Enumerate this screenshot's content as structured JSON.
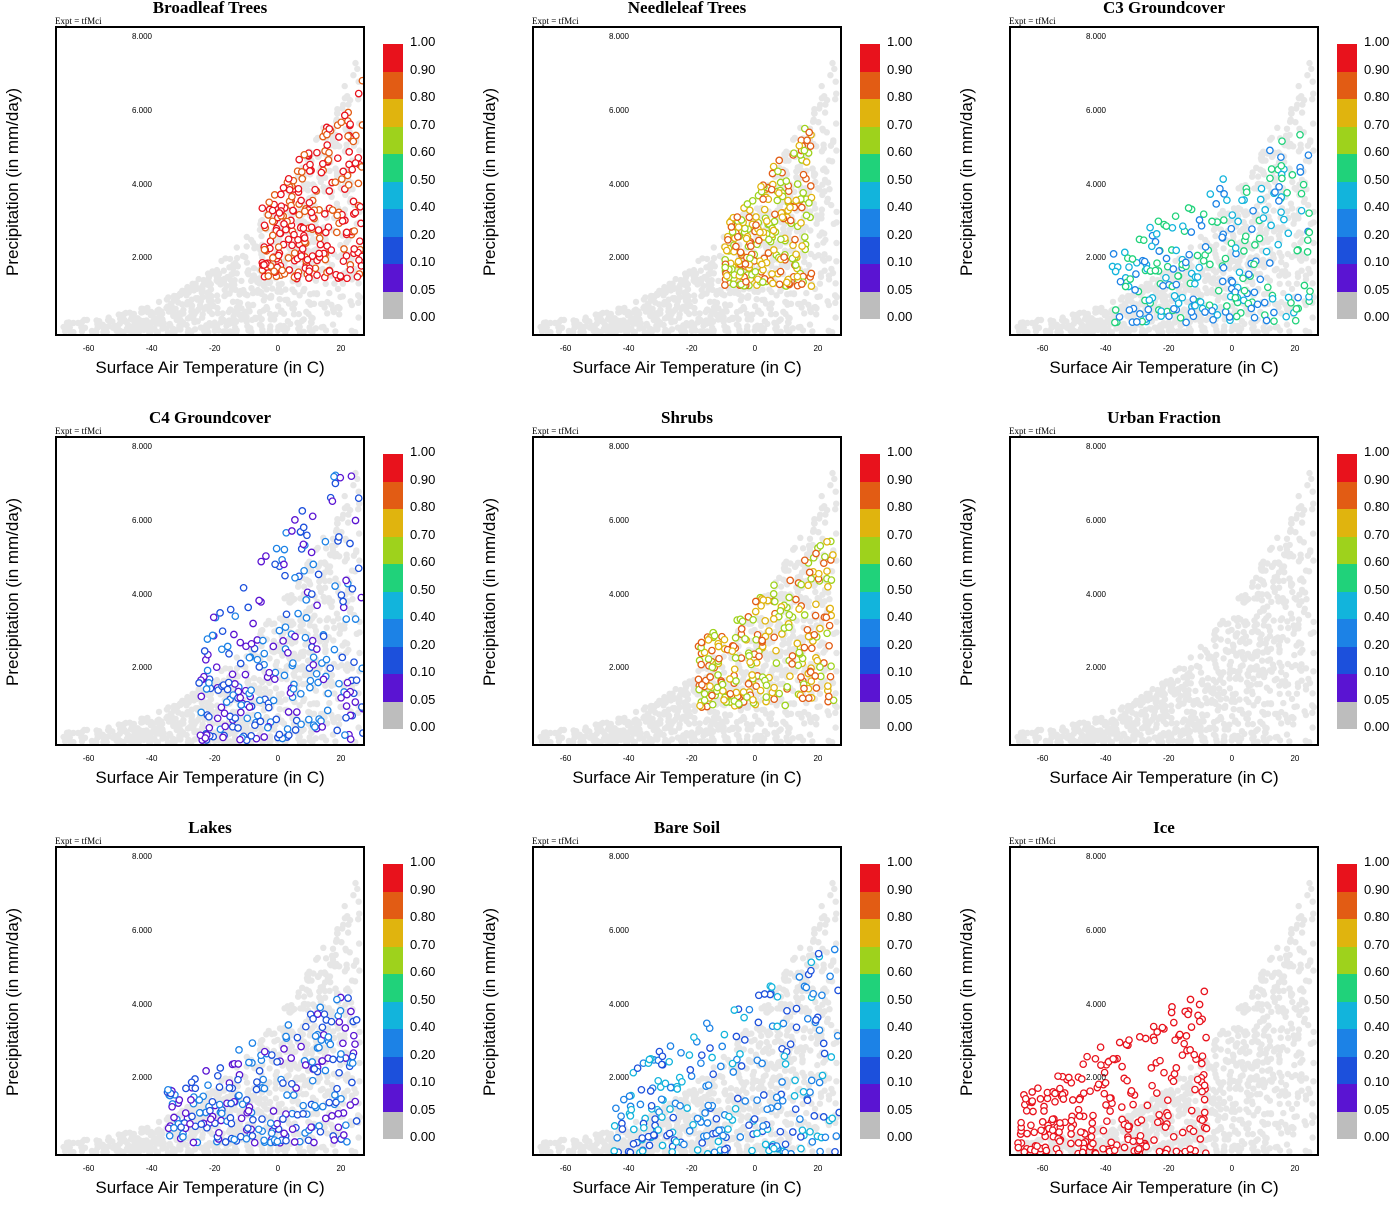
{
  "chart_data": [
    {
      "type": "scatter",
      "title": "Broadleaf Trees",
      "annotation": "Expt = tfMci",
      "xlabel": "Surface Air Temperature (in C)",
      "ylabel": "Precipitation (in mm/day)",
      "xlim": [
        -70,
        27
      ],
      "ylim": [
        0,
        8.3
      ],
      "xticks": [
        "-60",
        "-40",
        "-20",
        "0",
        "20"
      ],
      "yticks": [
        "2.000",
        "4.000",
        "6.000",
        "8.000"
      ],
      "highlight": {
        "x_range": [
          -5,
          27
        ],
        "y_range": [
          1.5,
          7.0
        ],
        "dominant_class": 8
      }
    },
    {
      "type": "scatter",
      "title": "Needleleaf Trees",
      "annotation": "Expt = tfMci",
      "xlabel": "Surface Air Temperature (in C)",
      "ylabel": "Precipitation (in mm/day)",
      "xlim": [
        -70,
        27
      ],
      "ylim": [
        0,
        8.3
      ],
      "xticks": [
        "-60",
        "-40",
        "-20",
        "0",
        "20"
      ],
      "yticks": [
        "2.000",
        "4.000",
        "6.000",
        "8.000"
      ],
      "highlight": {
        "x_range": [
          -10,
          18
        ],
        "y_range": [
          1.3,
          5.8
        ],
        "dominant_class": 6
      }
    },
    {
      "type": "scatter",
      "title": "C3 Groundcover",
      "annotation": "Expt = tfMci",
      "xlabel": "Surface Air Temperature (in C)",
      "ylabel": "Precipitation (in mm/day)",
      "xlim": [
        -70,
        27
      ],
      "ylim": [
        0,
        8.3
      ],
      "xticks": [
        "-60",
        "-40",
        "-20",
        "0",
        "20"
      ],
      "yticks": [
        "2.000",
        "4.000",
        "6.000",
        "8.000"
      ],
      "highlight": {
        "x_range": [
          -38,
          25
        ],
        "y_range": [
          0.3,
          5.8
        ],
        "dominant_class": 3
      }
    },
    {
      "type": "scatter",
      "title": "C4 Groundcover",
      "annotation": "Expt = tfMci",
      "xlabel": "Surface Air Temperature (in C)",
      "ylabel": "Precipitation (in mm/day)",
      "xlim": [
        -70,
        27
      ],
      "ylim": [
        0,
        8.3
      ],
      "xticks": [
        "-60",
        "-40",
        "-20",
        "0",
        "20"
      ],
      "yticks": [
        "2.000",
        "4.000",
        "6.000",
        "8.000"
      ],
      "highlight": {
        "x_range": [
          -25,
          27
        ],
        "y_range": [
          0.1,
          8.3
        ],
        "dominant_class": 1
      }
    },
    {
      "type": "scatter",
      "title": "Shrubs",
      "annotation": "Expt = tfMci",
      "xlabel": "Surface Air Temperature (in C)",
      "ylabel": "Precipitation (in mm/day)",
      "xlim": [
        -70,
        27
      ],
      "ylim": [
        0,
        8.3
      ],
      "xticks": [
        "-60",
        "-40",
        "-20",
        "0",
        "20"
      ],
      "yticks": [
        "2.000",
        "4.000",
        "6.000",
        "8.000"
      ],
      "highlight": {
        "x_range": [
          -18,
          25
        ],
        "y_range": [
          1.0,
          5.8
        ],
        "dominant_class": 6
      }
    },
    {
      "type": "scatter",
      "title": "Urban Fraction",
      "annotation": "Expt = tfMci",
      "xlabel": "Surface Air Temperature (in C)",
      "ylabel": "Precipitation (in mm/day)",
      "xlim": [
        -70,
        27
      ],
      "ylim": [
        0,
        8.3
      ],
      "xticks": [
        "-60",
        "-40",
        "-20",
        "0",
        "20"
      ],
      "yticks": [
        "2.000",
        "4.000",
        "6.000",
        "8.000"
      ],
      "highlight": null
    },
    {
      "type": "scatter",
      "title": "Lakes",
      "annotation": "Expt = tfMci",
      "xlabel": "Surface Air Temperature (in C)",
      "ylabel": "Precipitation (in mm/day)",
      "xlim": [
        -70,
        27
      ],
      "ylim": [
        0,
        8.3
      ],
      "xticks": [
        "-60",
        "-40",
        "-20",
        "0",
        "20"
      ],
      "yticks": [
        "2.000",
        "4.000",
        "6.000",
        "8.000"
      ],
      "highlight": {
        "x_range": [
          -35,
          25
        ],
        "y_range": [
          0.3,
          4.6
        ],
        "dominant_class": 1
      }
    },
    {
      "type": "scatter",
      "title": "Bare Soil",
      "annotation": "Expt = tfMci",
      "xlabel": "Surface Air Temperature (in C)",
      "ylabel": "Precipitation (in mm/day)",
      "xlim": [
        -70,
        27
      ],
      "ylim": [
        0,
        8.3
      ],
      "xticks": [
        "-60",
        "-40",
        "-20",
        "0",
        "20"
      ],
      "yticks": [
        "2.000",
        "4.000",
        "6.000",
        "8.000"
      ],
      "highlight": {
        "x_range": [
          -45,
          27
        ],
        "y_range": [
          0.0,
          5.8
        ],
        "dominant_class": 2
      }
    },
    {
      "type": "scatter",
      "title": "Ice",
      "annotation": "Expt = tfMci",
      "xlabel": "Surface Air Temperature (in C)",
      "ylabel": "Precipitation (in mm/day)",
      "xlim": [
        -70,
        27
      ],
      "ylim": [
        0,
        8.3
      ],
      "xticks": [
        "-60",
        "-40",
        "-20",
        "0",
        "20"
      ],
      "yticks": [
        "2.000",
        "4.000",
        "6.000",
        "8.000"
      ],
      "highlight": {
        "x_range": [
          -68,
          -8
        ],
        "y_range": [
          0.0,
          4.6
        ],
        "dominant_class": 9
      }
    }
  ],
  "colorbar": {
    "labels": [
      "1.00",
      "0.90",
      "0.80",
      "0.70",
      "0.60",
      "0.50",
      "0.40",
      "0.20",
      "0.10",
      "0.05",
      "0.00"
    ],
    "colors": [
      "#e8121c",
      "#e25c14",
      "#e0b40e",
      "#9ed21c",
      "#20d27a",
      "#12b4dc",
      "#1c82e6",
      "#1c50dc",
      "#5a14d2",
      "#bdbdbd"
    ]
  },
  "colors": {
    "background_points": "#e6e6e6",
    "zero_points": "#b4b4b4"
  }
}
